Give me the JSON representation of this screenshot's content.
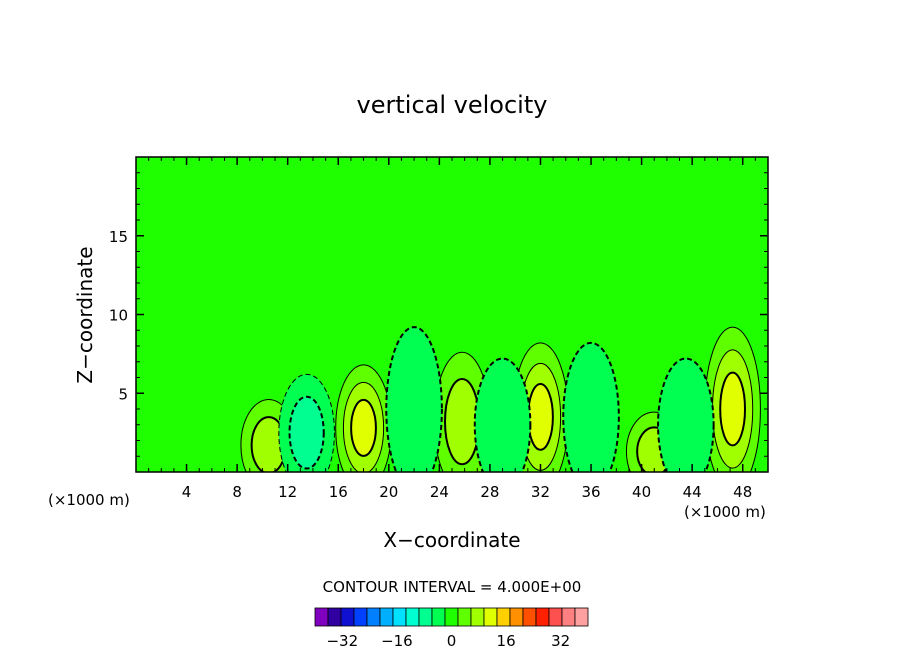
{
  "chart_data": {
    "type": "heatmap",
    "title": "vertical velocity",
    "xlabel": "X−coordinate",
    "ylabel": "Z−coordinate",
    "x_unit_left": "(×1000 m)",
    "x_unit_right": "(×1000 m)",
    "xlim": [
      0,
      50
    ],
    "ylim": [
      0,
      20
    ],
    "x_ticks": [
      "4",
      "8",
      "12",
      "16",
      "20",
      "24",
      "28",
      "32",
      "36",
      "40",
      "44",
      "48"
    ],
    "y_ticks": [
      "5",
      "10",
      "15"
    ],
    "contour_interval_label": "CONTOUR INTERVAL = 4.000E+00",
    "colorbar": {
      "min": -40,
      "max": 40,
      "step": 4,
      "tick_labels": [
        "−32",
        "−16",
        "0",
        "16",
        "32"
      ],
      "tick_values": [
        -32,
        -16,
        0,
        16,
        32
      ],
      "colors": [
        "#8000c0",
        "#3000a0",
        "#1010d0",
        "#0040ff",
        "#0080ff",
        "#00b0ff",
        "#00e0ff",
        "#00ffd0",
        "#00ff90",
        "#00ff50",
        "#20ff00",
        "#60ff00",
        "#a0ff00",
        "#e0ff00",
        "#ffd000",
        "#ff9000",
        "#ff5000",
        "#ff2000",
        "#ff5050",
        "#ff8080",
        "#ffa0a0"
      ]
    },
    "background_level": 0,
    "background_color": "#20ff00",
    "updrafts": [
      {
        "x": 10.5,
        "z": 1.7,
        "peak": 8
      },
      {
        "x": 18.0,
        "z": 2.8,
        "peak": 12
      },
      {
        "x": 25.8,
        "z": 3.2,
        "peak": 8
      },
      {
        "x": 32.0,
        "z": 3.5,
        "peak": 12
      },
      {
        "x": 41.0,
        "z": 1.3,
        "peak": 8
      },
      {
        "x": 47.2,
        "z": 4.0,
        "peak": 12
      }
    ],
    "downdrafts": [
      {
        "x": 13.5,
        "z": 2.5,
        "peak": -8
      },
      {
        "x": 22.0,
        "z": 4.0,
        "peak": -4
      },
      {
        "x": 29.0,
        "z": 3.0,
        "peak": -4
      },
      {
        "x": 36.0,
        "z": 3.5,
        "peak": -4
      },
      {
        "x": 43.5,
        "z": 3.0,
        "peak": -4
      }
    ]
  }
}
